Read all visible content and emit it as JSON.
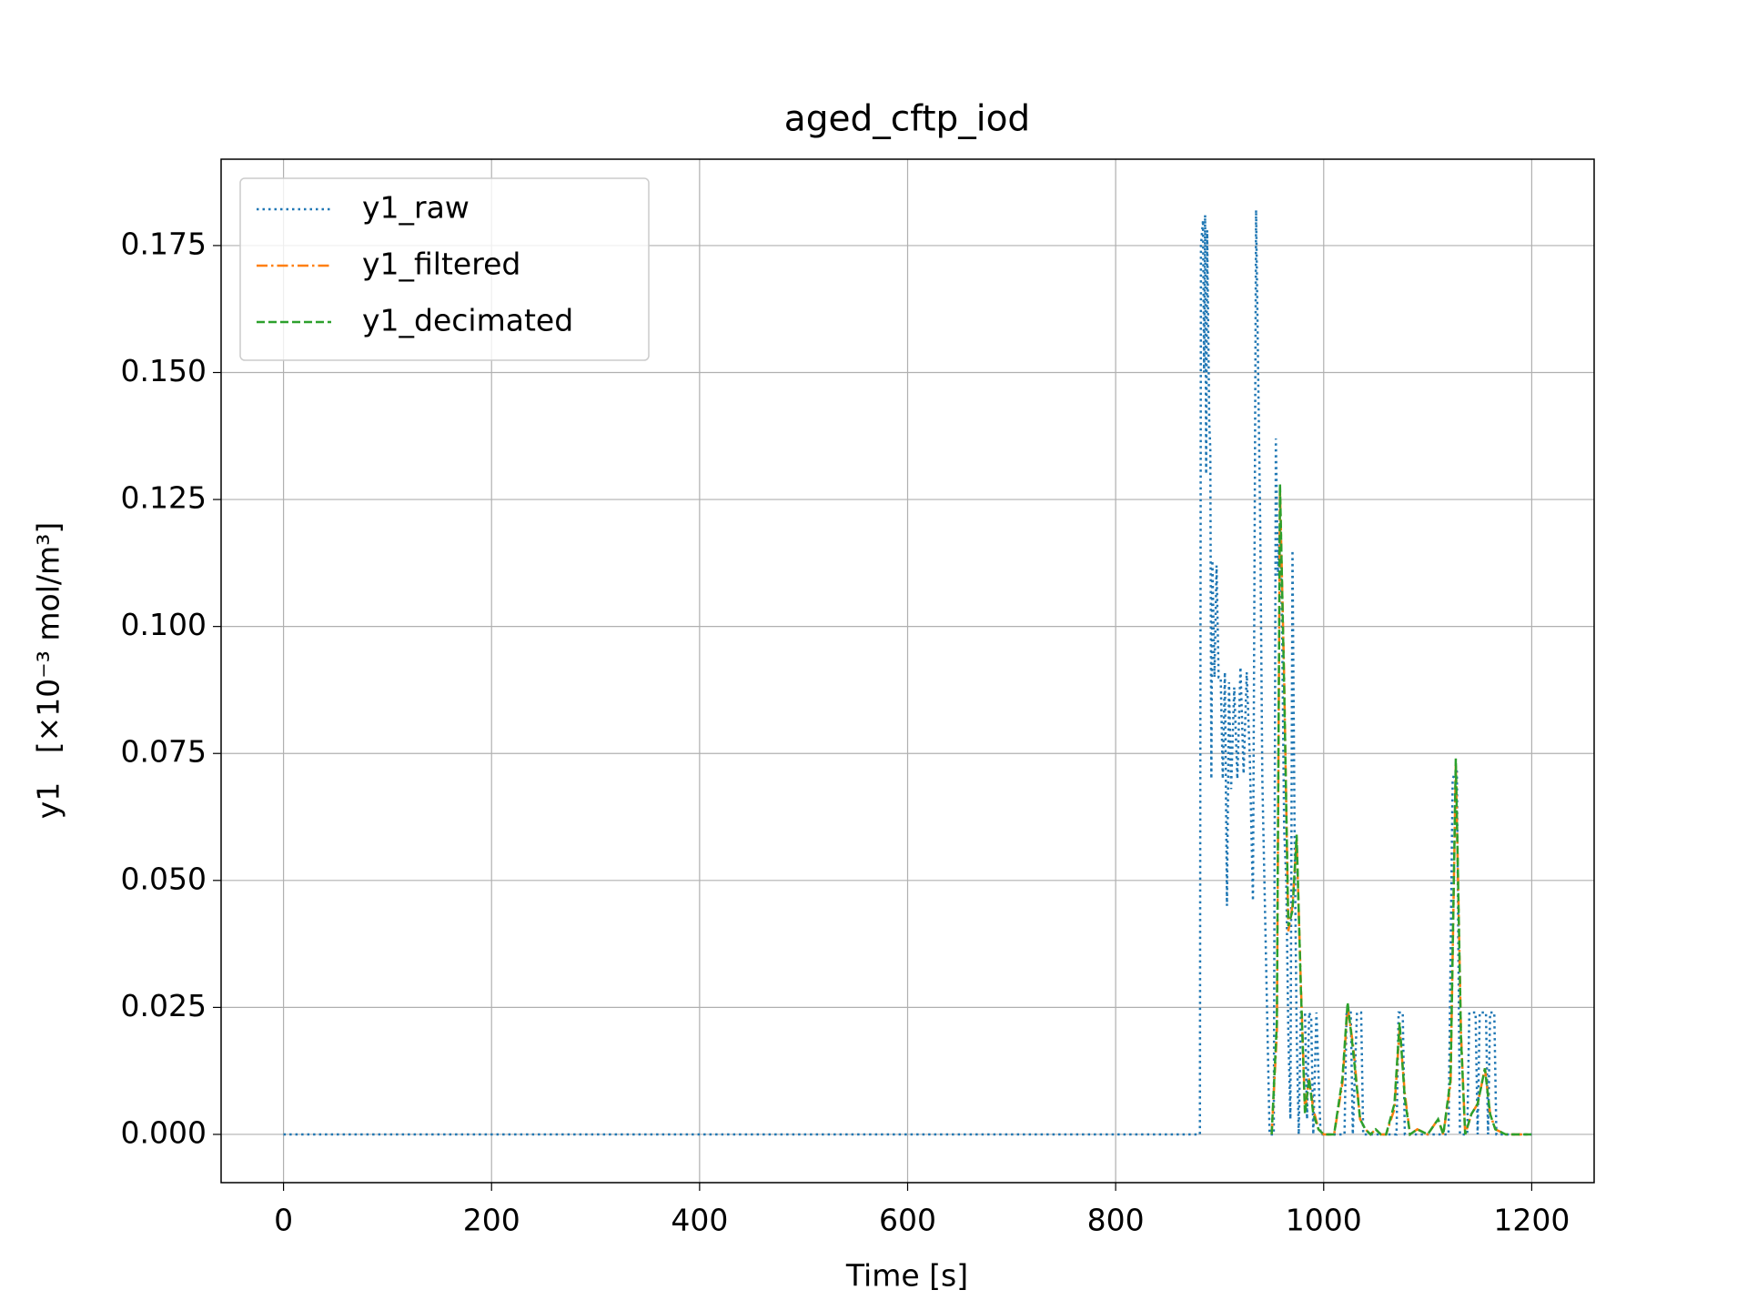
{
  "chart_data": {
    "type": "line",
    "title": "aged_cftp_iod",
    "xlabel": "Time [s]",
    "ylabel": "y1   [×10⁻³ mol/m³]",
    "xlim": [
      -60,
      1260
    ],
    "xticks": [
      0,
      200,
      400,
      600,
      800,
      1000,
      1200
    ],
    "ylim": [
      -0.0095,
      0.192
    ],
    "yticks": [
      {
        "value": 0,
        "label": "0.000"
      },
      {
        "value": 0.025,
        "label": "0.025"
      },
      {
        "value": 0.05,
        "label": "0.050"
      },
      {
        "value": 0.075,
        "label": "0.075"
      },
      {
        "value": 0.1,
        "label": "0.100"
      },
      {
        "value": 0.125,
        "label": "0.125"
      },
      {
        "value": 0.15,
        "label": "0.150"
      },
      {
        "value": 0.175,
        "label": "0.175"
      }
    ],
    "grid": true,
    "legend": "upper left",
    "series": [
      {
        "name": "y1_raw",
        "color": "#1f77b4",
        "style": "dotted",
        "x": [
          0,
          881,
          882,
          884,
          885,
          886,
          887,
          888,
          890,
          891,
          892,
          893,
          895,
          897,
          899,
          901,
          903,
          905,
          907,
          909,
          911,
          914,
          917,
          920,
          923,
          926,
          929,
          932,
          933,
          935,
          937,
          939,
          941,
          943,
          946,
          948,
          952,
          954,
          956,
          958,
          960,
          962,
          964,
          966,
          968,
          970,
          972,
          974,
          976,
          978,
          982,
          984,
          986,
          988,
          990,
          993,
          997,
          1000,
          1020,
          1022,
          1026,
          1028,
          1032,
          1036,
          1038,
          1070,
          1072,
          1076,
          1078,
          1120,
          1124,
          1128,
          1131,
          1138,
          1140,
          1146,
          1148,
          1150,
          1156,
          1158,
          1160,
          1164,
          1166,
          1200
        ],
        "values": [
          0,
          0,
          0.175,
          0.18,
          0.15,
          0.181,
          0.13,
          0.178,
          0.14,
          0.135,
          0.07,
          0.113,
          0.09,
          0.112,
          0.09,
          0.09,
          0.07,
          0.091,
          0.045,
          0.089,
          0.068,
          0.088,
          0.07,
          0.092,
          0.071,
          0.091,
          0.074,
          0.046,
          0.09,
          0.182,
          0.15,
          0.12,
          0.07,
          0.05,
          0.02,
          0,
          0,
          0.137,
          0.11,
          0.12,
          0.1,
          0.06,
          0.05,
          0.02,
          0.003,
          0.115,
          0.06,
          0.02,
          0,
          0.024,
          0.024,
          0.003,
          0.024,
          0.023,
          0,
          0.024,
          0,
          0,
          0,
          0.024,
          0.024,
          0,
          0.024,
          0.024,
          0,
          0,
          0.024,
          0.024,
          0,
          0,
          0.07,
          0.072,
          0,
          0,
          0.024,
          0.024,
          0,
          0.024,
          0.024,
          0,
          0.024,
          0.024,
          0,
          0
        ]
      },
      {
        "name": "y1_filtered",
        "color": "#ff7f0e",
        "style": "dashdot",
        "x": [
          950,
          955,
          958,
          962,
          966,
          970,
          974,
          978,
          982,
          986,
          990,
          995,
          1000,
          1010,
          1018,
          1023,
          1028,
          1035,
          1040,
          1045,
          1050,
          1055,
          1060,
          1068,
          1073,
          1078,
          1083,
          1090,
          1100,
          1110,
          1115,
          1122,
          1127,
          1132,
          1136,
          1142,
          1148,
          1155,
          1160,
          1165,
          1175,
          1200
        ],
        "values": [
          0,
          0.02,
          0.127,
          0.09,
          0.04,
          0.045,
          0.058,
          0.03,
          0.005,
          0.011,
          0.005,
          0.001,
          0,
          0,
          0.01,
          0.025,
          0.018,
          0.003,
          0.001,
          0,
          0.001,
          0,
          0,
          0.005,
          0.021,
          0.008,
          0,
          0.001,
          0,
          0.003,
          0,
          0.01,
          0.073,
          0.02,
          0,
          0.004,
          0.006,
          0.013,
          0.004,
          0.001,
          0,
          0
        ]
      },
      {
        "name": "y1_decimated",
        "color": "#2ca02c",
        "style": "dashed",
        "x": [
          950,
          955,
          958,
          962,
          966,
          970,
          974,
          978,
          982,
          986,
          990,
          995,
          1000,
          1010,
          1018,
          1023,
          1028,
          1035,
          1040,
          1045,
          1050,
          1055,
          1060,
          1068,
          1073,
          1078,
          1083,
          1090,
          1100,
          1110,
          1115,
          1122,
          1127,
          1132,
          1136,
          1142,
          1148,
          1155,
          1160,
          1165,
          1175,
          1200
        ],
        "values": [
          0,
          0.022,
          0.128,
          0.088,
          0.041,
          0.044,
          0.059,
          0.029,
          0.004,
          0.011,
          0.004,
          0.001,
          0,
          0,
          0.011,
          0.026,
          0.017,
          0.003,
          0.001,
          0,
          0.001,
          0,
          0,
          0.006,
          0.022,
          0.007,
          0,
          0.001,
          0,
          0.003,
          0,
          0.011,
          0.074,
          0.019,
          0,
          0.004,
          0.006,
          0.013,
          0.004,
          0.001,
          0,
          0
        ]
      }
    ]
  }
}
